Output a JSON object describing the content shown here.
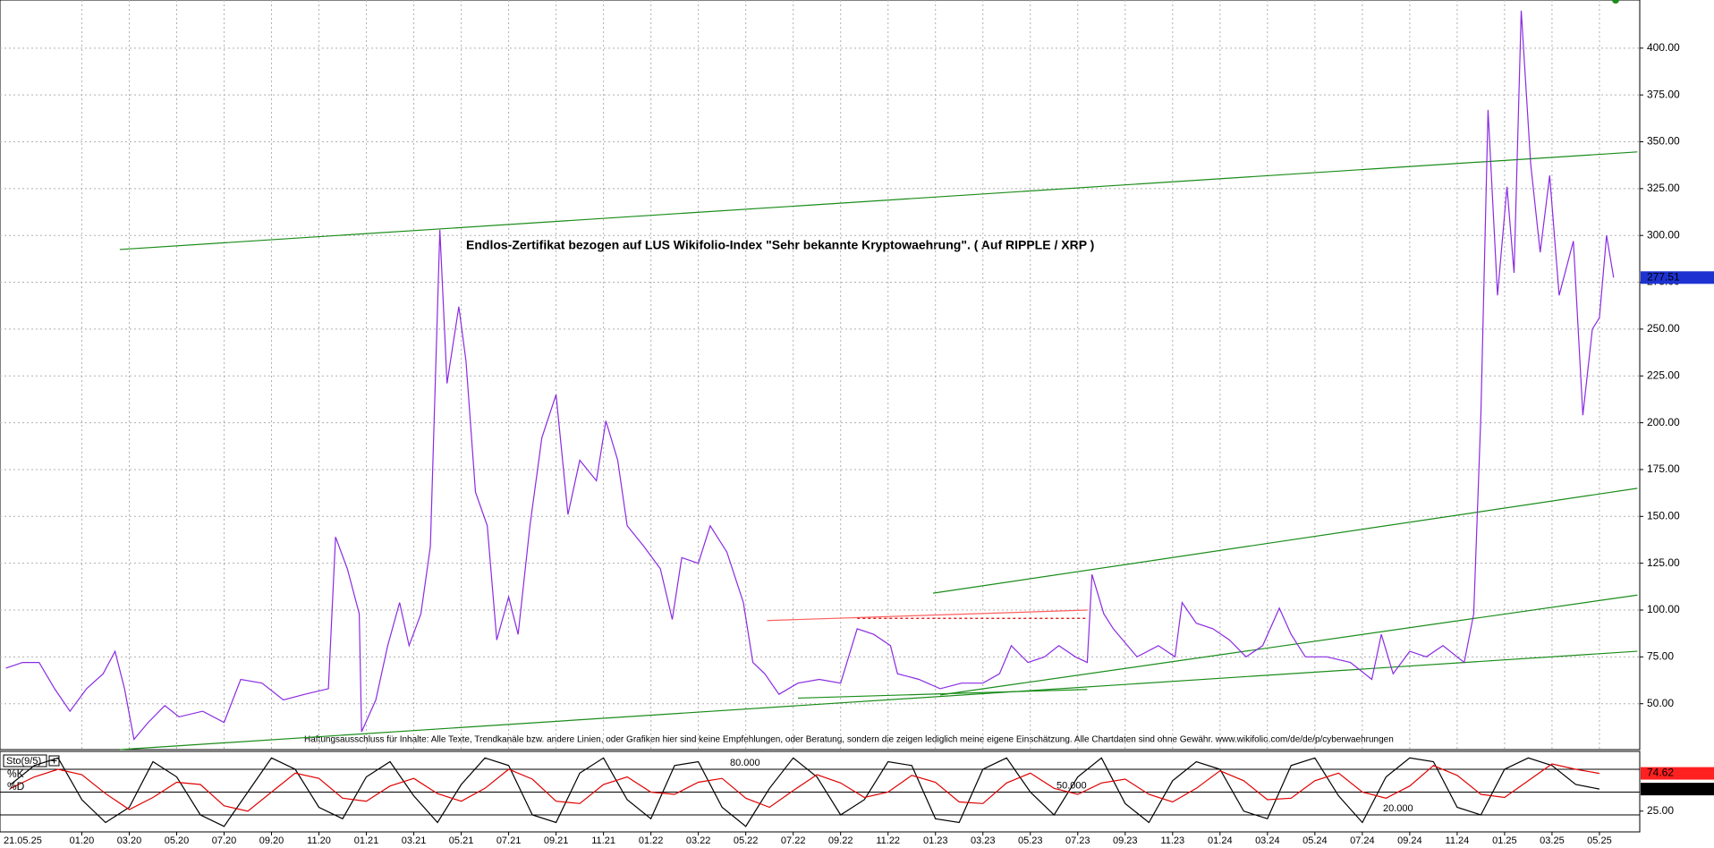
{
  "chart_data": [
    {
      "type": "line",
      "annotation": "Endlos-Zertifikat bezogen auf LUS Wikifolio-Index \"Sehr bekannte Kryptowaehrung\". ( Auf RIPPLE / XRP )",
      "disclaimer": "Haftungsausschluss für Inhalte: Alle Texte, Trendkanäle bzw. andere Linien, oder Grafiken hier sind keine Empfehlungen, oder Beratung, sondern die zeigen lediglich meine eigene Einschätzung. Alle Chartdaten sind ohne Gewähr.  www.wikifolio.com/de/de/p/cyberwaehrungen",
      "date_label": "21.05.25",
      "x": [
        -3.2,
        -2.5,
        -1.8,
        -1.15,
        -0.5,
        0.2,
        0.9,
        1.4,
        1.8,
        2.2,
        2.8,
        3.5,
        4.1,
        5.1,
        6.0,
        6.7,
        7.6,
        8.5,
        9.4,
        10.4,
        10.7,
        11.2,
        11.7,
        11.8,
        12.4,
        12.9,
        13.4,
        13.8,
        14.3,
        14.7,
        15.1,
        15.4,
        15.9,
        16.2,
        16.6,
        17.1,
        17.5,
        18.0,
        18.4,
        18.9,
        19.4,
        20.0,
        20.5,
        21.0,
        21.7,
        22.1,
        22.6,
        23.0,
        23.7,
        24.4,
        24.9,
        25.3,
        26.0,
        26.5,
        27.2,
        27.9,
        28.3,
        28.8,
        29.4,
        30.2,
        31.1,
        32.0,
        32.7,
        33.4,
        34.1,
        34.4,
        35.3,
        36.2,
        37.1,
        38.0,
        38.7,
        39.2,
        39.9,
        40.6,
        41.2,
        41.9,
        42.4,
        42.6,
        43.1,
        43.5,
        44.5,
        45.4,
        46.1,
        46.4,
        47.0,
        47.7,
        48.4,
        49.1,
        49.8,
        50.5,
        51.0,
        51.6,
        52.5,
        53.5,
        54.4,
        54.8,
        55.3,
        56.0,
        56.7,
        57.4,
        58.3,
        58.7,
        59.0,
        59.3,
        59.7,
        60.1,
        60.4,
        60.7,
        61.1,
        61.5,
        61.9,
        62.3,
        62.9,
        63.3,
        63.7,
        64.0,
        64.3,
        64.6
      ],
      "series": [
        {
          "color": "#8a2be2",
          "values": [
            69,
            72,
            72,
            58,
            46,
            58,
            66,
            78,
            58,
            31,
            40,
            49,
            43,
            46,
            40,
            63,
            61,
            52,
            55,
            58,
            139,
            122,
            98,
            35,
            52,
            81,
            104,
            81,
            98,
            134,
            303,
            221,
            262,
            233,
            163,
            145,
            84,
            107,
            87,
            145,
            192,
            215,
            151,
            180,
            169,
            201,
            180,
            145,
            134,
            122,
            95,
            128,
            125,
            145,
            131,
            104,
            72,
            66,
            55,
            61,
            63,
            61,
            90,
            87,
            81,
            66,
            63,
            58,
            61,
            61,
            66,
            81,
            72,
            75,
            81,
            75,
            72,
            119,
            98,
            90,
            75,
            81,
            75,
            104,
            93,
            90,
            84,
            75,
            81,
            101,
            87,
            75,
            75,
            72,
            63,
            87,
            66,
            78,
            75,
            81,
            72,
            98,
            204,
            367,
            268,
            326,
            280,
            420,
            338,
            291,
            332,
            268,
            297,
            204,
            250,
            256,
            300,
            277.51
          ]
        }
      ],
      "trend_lines": [
        {
          "color": "#1a8c1a",
          "x": [
            1.6,
            65.6
          ],
          "y": [
            292.5,
            344.6
          ]
        },
        {
          "color": "#1a8c1a",
          "x": [
            35.9,
            65.6
          ],
          "y": [
            109,
            165
          ]
        },
        {
          "color": "#1a8c1a",
          "x": [
            36.2,
            65.6
          ],
          "y": [
            54.7,
            108
          ]
        },
        {
          "color": "#1a8c1a",
          "x": [
            1.6,
            65.6
          ],
          "y": [
            25.5,
            78
          ]
        },
        {
          "color": "#1a8c1a",
          "x": [
            30.2,
            42.4
          ],
          "y": [
            53,
            57.6
          ]
        },
        {
          "color": "#ff6060",
          "x": [
            28.9,
            42.4
          ],
          "y": [
            94.4,
            100
          ]
        },
        {
          "color": "#e00000",
          "dashed": true,
          "x": [
            32.7,
            42.4
          ],
          "y": [
            95.6,
            95.6
          ]
        }
      ],
      "xlim": [
        -3.45,
        65.7
      ],
      "xticks": [
        {
          "value": 0,
          "label": "01.20"
        },
        {
          "value": 2,
          "label": "03.20"
        },
        {
          "value": 4,
          "label": "05.20"
        },
        {
          "value": 6,
          "label": "07.20"
        },
        {
          "value": 8,
          "label": "09.20"
        },
        {
          "value": 10,
          "label": "11.20"
        },
        {
          "value": 12,
          "label": "01.21"
        },
        {
          "value": 14,
          "label": "03.21"
        },
        {
          "value": 16,
          "label": "05.21"
        },
        {
          "value": 18,
          "label": "07.21"
        },
        {
          "value": 20,
          "label": "09.21"
        },
        {
          "value": 22,
          "label": "11.21"
        },
        {
          "value": 24,
          "label": "01.22"
        },
        {
          "value": 26,
          "label": "03.22"
        },
        {
          "value": 28,
          "label": "05.22"
        },
        {
          "value": 30,
          "label": "07.22"
        },
        {
          "value": 32,
          "label": "09.22"
        },
        {
          "value": 34,
          "label": "11.22"
        },
        {
          "value": 36,
          "label": "01.23"
        },
        {
          "value": 38,
          "label": "03.23"
        },
        {
          "value": 40,
          "label": "05.23"
        },
        {
          "value": 42,
          "label": "07.23"
        },
        {
          "value": 44,
          "label": "09.23"
        },
        {
          "value": 46,
          "label": "11.23"
        },
        {
          "value": 48,
          "label": "01.24"
        },
        {
          "value": 50,
          "label": "03.24"
        },
        {
          "value": 52,
          "label": "05.24"
        },
        {
          "value": 54,
          "label": "07.24"
        },
        {
          "value": 56,
          "label": "09.24"
        },
        {
          "value": 58,
          "label": "11.24"
        },
        {
          "value": 60,
          "label": "01.25"
        },
        {
          "value": 62,
          "label": "03.25"
        },
        {
          "value": 64,
          "label": "05.25"
        }
      ],
      "ylim": [
        25.5,
        425.7
      ],
      "yticks": [
        {
          "value": 50,
          "label": "50.00"
        },
        {
          "value": 75,
          "label": "75.00"
        },
        {
          "value": 100,
          "label": "100.00"
        },
        {
          "value": 125,
          "label": "125.00"
        },
        {
          "value": 150,
          "label": "150.00"
        },
        {
          "value": 175,
          "label": "175.00"
        },
        {
          "value": 200,
          "label": "200.00"
        },
        {
          "value": 225,
          "label": "225.00"
        },
        {
          "value": 250,
          "label": "250.00"
        },
        {
          "value": 275,
          "label": "275.00"
        },
        {
          "value": 300,
          "label": "300.00"
        },
        {
          "value": 325,
          "label": "325.00"
        },
        {
          "value": 350,
          "label": "350.00"
        },
        {
          "value": 375,
          "label": "375.00"
        },
        {
          "value": 400,
          "label": "400.00"
        }
      ],
      "grid": true
    },
    {
      "type": "line",
      "legend_title": "Sto(9/5)",
      "x": [
        -3,
        -2,
        -1,
        0,
        1,
        2,
        3,
        4,
        5,
        6,
        7,
        8,
        9,
        10,
        11,
        12,
        13,
        14,
        15,
        16,
        17,
        18,
        19,
        20,
        21,
        22,
        23,
        24,
        25,
        26,
        27,
        28,
        29,
        30,
        31,
        32,
        33,
        34,
        35,
        36,
        37,
        38,
        39,
        40,
        41,
        42,
        43,
        44,
        45,
        46,
        47,
        48,
        49,
        50,
        51,
        52,
        53,
        54,
        55,
        56,
        57,
        58,
        59,
        60,
        61,
        62,
        63,
        64
      ],
      "series": [
        {
          "name": "%K",
          "color": "#000000",
          "values": [
            60,
            85,
            95,
            40,
            10,
            30,
            90,
            70,
            20,
            5,
            50,
            95,
            80,
            30,
            15,
            70,
            90,
            45,
            10,
            60,
            95,
            85,
            20,
            10,
            75,
            95,
            40,
            15,
            85,
            90,
            30,
            5,
            55,
            95,
            70,
            20,
            40,
            90,
            85,
            15,
            10,
            80,
            95,
            50,
            20,
            70,
            95,
            35,
            10,
            65,
            90,
            80,
            25,
            15,
            85,
            95,
            45,
            10,
            70,
            95,
            90,
            30,
            20,
            80,
            95,
            85,
            60,
            53.97
          ]
        },
        {
          "name": "%D",
          "color": "#e00000",
          "values": [
            55,
            70,
            80,
            73,
            48,
            27,
            43,
            63,
            60,
            32,
            25,
            50,
            75,
            68,
            42,
            38,
            58,
            68,
            48,
            38,
            55,
            80,
            67,
            38,
            35,
            60,
            70,
            50,
            47,
            63,
            68,
            42,
            30,
            52,
            73,
            62,
            43,
            50,
            72,
            63,
            37,
            35,
            62,
            75,
            55,
            47,
            62,
            67,
            47,
            37,
            55,
            78,
            65,
            40,
            42,
            65,
            75,
            50,
            42,
            58,
            85,
            72,
            47,
            43,
            65,
            87,
            80,
            74.62
          ]
        }
      ],
      "levels": [
        {
          "value": 80,
          "label": "80.000"
        },
        {
          "value": 50,
          "label": "50.000"
        },
        {
          "value": 20,
          "label": "20.000"
        }
      ],
      "xlim": [
        -3.45,
        65.7
      ],
      "ylim": [
        0,
        100
      ],
      "yticks": [
        {
          "value": 25,
          "label": "25.00"
        }
      ]
    }
  ]
}
